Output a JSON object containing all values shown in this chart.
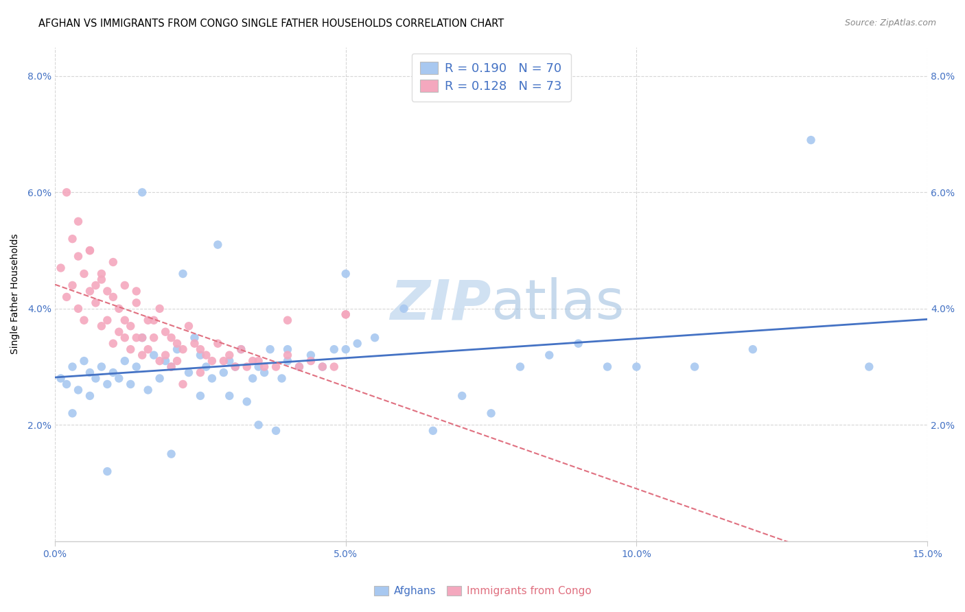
{
  "title": "AFGHAN VS IMMIGRANTS FROM CONGO SINGLE FATHER HOUSEHOLDS CORRELATION CHART",
  "source": "Source: ZipAtlas.com",
  "ylabel": "Single Father Households",
  "x_min": 0.0,
  "x_max": 0.15,
  "y_min": 0.0,
  "y_max": 0.085,
  "x_ticks": [
    0.0,
    0.05,
    0.1,
    0.15
  ],
  "x_tick_labels": [
    "0.0%",
    "5.0%",
    "10.0%",
    "15.0%"
  ],
  "y_ticks": [
    0.02,
    0.04,
    0.06,
    0.08
  ],
  "y_tick_labels": [
    "2.0%",
    "4.0%",
    "6.0%",
    "8.0%"
  ],
  "legend_labels": [
    "Afghans",
    "Immigrants from Congo"
  ],
  "legend_R": [
    0.19,
    0.128
  ],
  "legend_N": [
    70,
    73
  ],
  "blue_color": "#A8C8F0",
  "pink_color": "#F4A8BE",
  "blue_line_color": "#4472C4",
  "pink_line_color": "#E07080",
  "tick_color": "#4472C4",
  "grid_color": "#CCCCCC",
  "watermark_color": "#C8DCF0",
  "afghans_x": [
    0.001,
    0.002,
    0.003,
    0.004,
    0.005,
    0.006,
    0.007,
    0.008,
    0.009,
    0.01,
    0.011,
    0.012,
    0.013,
    0.014,
    0.015,
    0.016,
    0.017,
    0.018,
    0.019,
    0.02,
    0.021,
    0.022,
    0.023,
    0.024,
    0.025,
    0.026,
    0.027,
    0.028,
    0.029,
    0.03,
    0.031,
    0.032,
    0.033,
    0.034,
    0.035,
    0.036,
    0.037,
    0.038,
    0.039,
    0.04,
    0.042,
    0.044,
    0.046,
    0.048,
    0.05,
    0.052,
    0.055,
    0.06,
    0.065,
    0.07,
    0.075,
    0.08,
    0.085,
    0.09,
    0.095,
    0.1,
    0.11,
    0.12,
    0.13,
    0.14,
    0.003,
    0.006,
    0.009,
    0.015,
    0.02,
    0.025,
    0.03,
    0.035,
    0.04,
    0.05
  ],
  "afghans_y": [
    0.028,
    0.027,
    0.03,
    0.026,
    0.031,
    0.029,
    0.028,
    0.03,
    0.027,
    0.029,
    0.028,
    0.031,
    0.027,
    0.03,
    0.06,
    0.026,
    0.032,
    0.028,
    0.031,
    0.03,
    0.033,
    0.046,
    0.029,
    0.035,
    0.032,
    0.03,
    0.028,
    0.051,
    0.029,
    0.031,
    0.03,
    0.033,
    0.024,
    0.028,
    0.03,
    0.029,
    0.033,
    0.019,
    0.028,
    0.031,
    0.03,
    0.032,
    0.03,
    0.033,
    0.046,
    0.034,
    0.035,
    0.04,
    0.019,
    0.025,
    0.022,
    0.03,
    0.032,
    0.034,
    0.03,
    0.03,
    0.03,
    0.033,
    0.069,
    0.03,
    0.022,
    0.025,
    0.012,
    0.035,
    0.015,
    0.025,
    0.025,
    0.02,
    0.033,
    0.033
  ],
  "congo_x": [
    0.001,
    0.002,
    0.003,
    0.003,
    0.004,
    0.004,
    0.005,
    0.005,
    0.006,
    0.006,
    0.007,
    0.007,
    0.008,
    0.008,
    0.009,
    0.009,
    0.01,
    0.01,
    0.011,
    0.011,
    0.012,
    0.012,
    0.013,
    0.013,
    0.014,
    0.014,
    0.015,
    0.015,
    0.016,
    0.016,
    0.017,
    0.017,
    0.018,
    0.018,
    0.019,
    0.019,
    0.02,
    0.02,
    0.021,
    0.021,
    0.022,
    0.022,
    0.023,
    0.024,
    0.025,
    0.025,
    0.026,
    0.027,
    0.028,
    0.029,
    0.03,
    0.031,
    0.032,
    0.033,
    0.034,
    0.035,
    0.036,
    0.038,
    0.04,
    0.042,
    0.044,
    0.046,
    0.048,
    0.05,
    0.002,
    0.004,
    0.006,
    0.008,
    0.01,
    0.012,
    0.014,
    0.04,
    0.05
  ],
  "congo_y": [
    0.047,
    0.042,
    0.044,
    0.052,
    0.04,
    0.049,
    0.046,
    0.038,
    0.043,
    0.05,
    0.041,
    0.044,
    0.045,
    0.037,
    0.038,
    0.043,
    0.042,
    0.034,
    0.04,
    0.036,
    0.035,
    0.038,
    0.037,
    0.033,
    0.041,
    0.035,
    0.035,
    0.032,
    0.033,
    0.038,
    0.038,
    0.035,
    0.04,
    0.031,
    0.036,
    0.032,
    0.035,
    0.03,
    0.034,
    0.031,
    0.033,
    0.027,
    0.037,
    0.034,
    0.033,
    0.029,
    0.032,
    0.031,
    0.034,
    0.031,
    0.032,
    0.03,
    0.033,
    0.03,
    0.031,
    0.031,
    0.03,
    0.03,
    0.032,
    0.03,
    0.031,
    0.03,
    0.03,
    0.039,
    0.06,
    0.055,
    0.05,
    0.046,
    0.048,
    0.044,
    0.043,
    0.038,
    0.039
  ]
}
